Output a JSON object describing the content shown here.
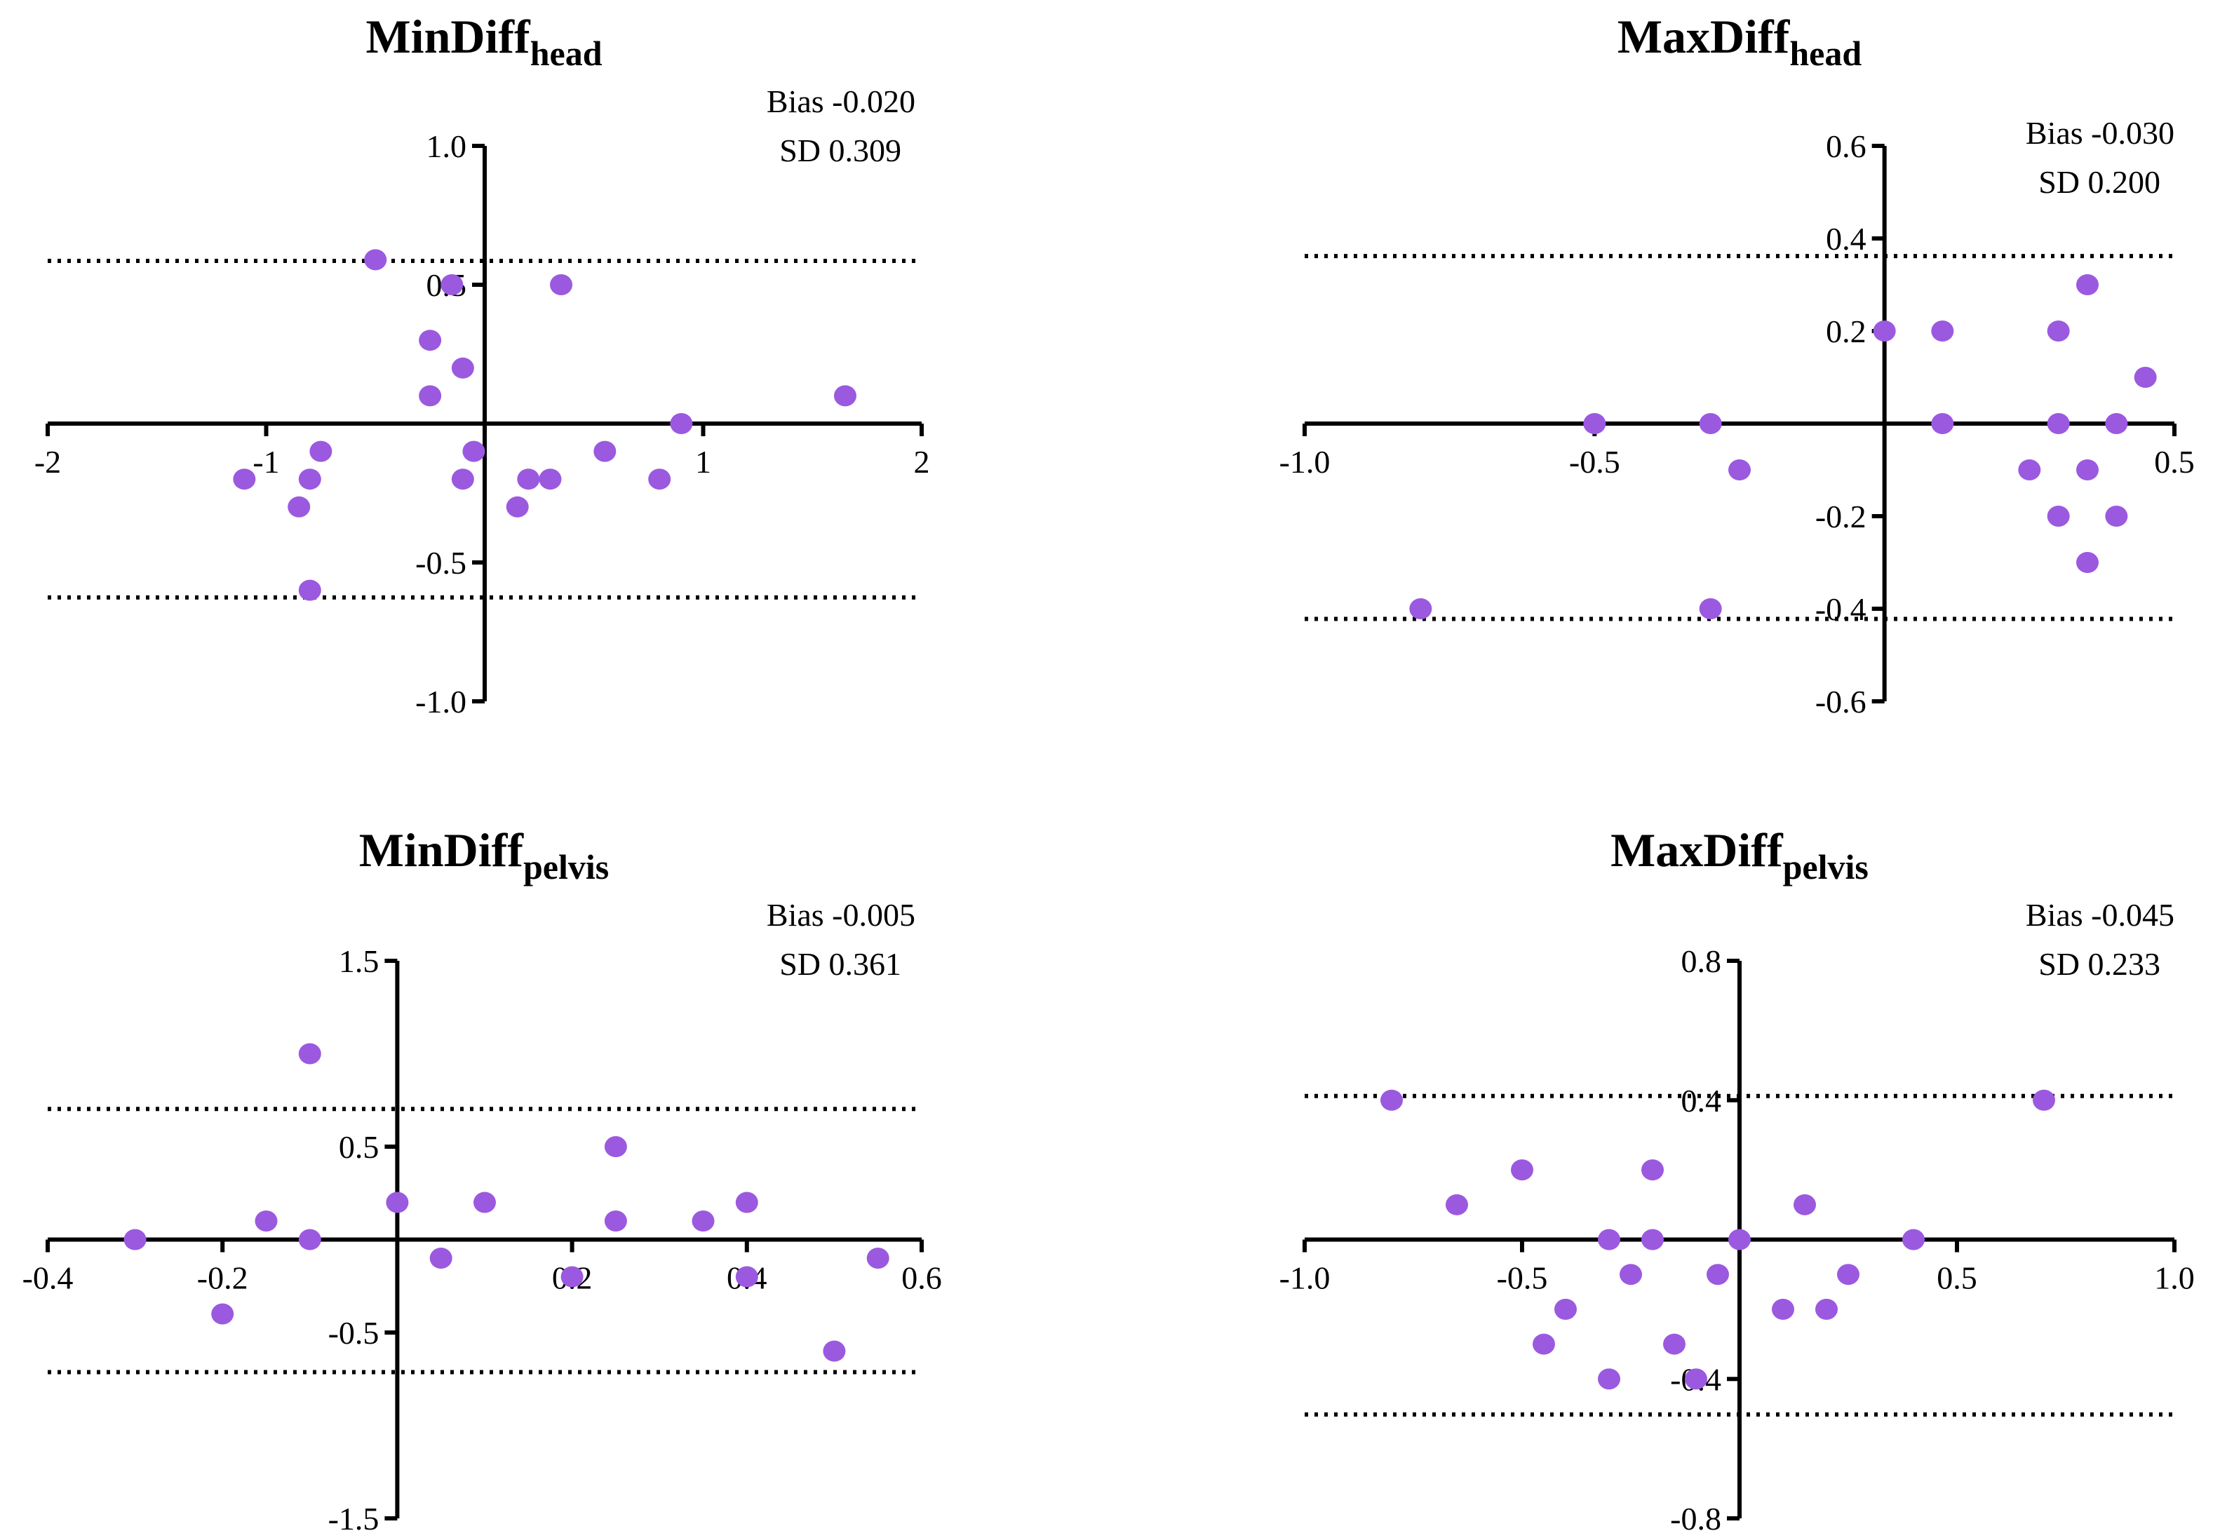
{
  "chart_data": [
    {
      "type": "scatter",
      "title": "MinDiff",
      "title_subscript": "head",
      "bias_label": "Bias -0.020",
      "sd_label": "SD 0.309",
      "point_color": "#9b59e0",
      "point_color_dark": "#7f2fd6",
      "xlim": [
        -2,
        2
      ],
      "ylim": [
        -1.0,
        1.0
      ],
      "x_ticks": [
        "-2",
        "-1",
        "1",
        "2"
      ],
      "x_tick_values": [
        -2,
        -1,
        1,
        2
      ],
      "y_ticks": [
        "1.0",
        "0.5",
        "-0.5",
        "-1.0"
      ],
      "y_tick_values": [
        1.0,
        0.5,
        -0.5,
        -1.0
      ],
      "limits_of_agreement": [
        0.586,
        -0.626
      ],
      "points": [
        {
          "x": -0.5,
          "y": 0.59
        },
        {
          "x": -0.15,
          "y": 0.5
        },
        {
          "x": 0.35,
          "y": 0.5
        },
        {
          "x": -0.25,
          "y": 0.3
        },
        {
          "x": -0.1,
          "y": 0.2
        },
        {
          "x": -0.25,
          "y": 0.1
        },
        {
          "x": 1.65,
          "y": 0.1
        },
        {
          "x": 0.9,
          "y": 0.0
        },
        {
          "x": -0.75,
          "y": -0.1
        },
        {
          "x": -0.05,
          "y": -0.1
        },
        {
          "x": 0.55,
          "y": -0.1
        },
        {
          "x": -1.1,
          "y": -0.2
        },
        {
          "x": -0.8,
          "y": -0.2
        },
        {
          "x": -0.1,
          "y": -0.2
        },
        {
          "x": 0.2,
          "y": -0.2
        },
        {
          "x": 0.3,
          "y": -0.2
        },
        {
          "x": 0.8,
          "y": -0.2
        },
        {
          "x": -0.85,
          "y": -0.3
        },
        {
          "x": 0.15,
          "y": -0.3
        },
        {
          "x": -0.8,
          "y": -0.6
        }
      ]
    },
    {
      "type": "scatter",
      "title": "MaxDiff",
      "title_subscript": "head",
      "bias_label": "Bias -0.030",
      "sd_label": "SD 0.200",
      "point_color": "#9b59e0",
      "point_color_dark": "#7f2fd6",
      "xlim": [
        -1.0,
        0.5
      ],
      "ylim": [
        -0.6,
        0.6
      ],
      "x_ticks": [
        "-1.0",
        "-0.5",
        "0.5"
      ],
      "x_tick_values": [
        -1.0,
        -0.5,
        0.5
      ],
      "y_ticks": [
        "0.6",
        "0.4",
        "0.2",
        "-0.2",
        "-0.4",
        "-0.6"
      ],
      "y_tick_values": [
        0.6,
        0.4,
        0.2,
        -0.2,
        -0.4,
        -0.6
      ],
      "limits_of_agreement": [
        0.362,
        -0.422
      ],
      "points": [
        {
          "x": 0.35,
          "y": 0.3
        },
        {
          "x": 0.0,
          "y": 0.2
        },
        {
          "x": 0.1,
          "y": 0.2
        },
        {
          "x": 0.3,
          "y": 0.2
        },
        {
          "x": 0.45,
          "y": 0.1
        },
        {
          "x": -0.5,
          "y": 0.0
        },
        {
          "x": -0.3,
          "y": 0.0
        },
        {
          "x": 0.1,
          "y": 0.0
        },
        {
          "x": 0.3,
          "y": 0.0
        },
        {
          "x": 0.4,
          "y": 0.0
        },
        {
          "x": -0.25,
          "y": -0.1
        },
        {
          "x": 0.25,
          "y": -0.1
        },
        {
          "x": 0.35,
          "y": -0.1
        },
        {
          "x": 0.3,
          "y": -0.2
        },
        {
          "x": 0.4,
          "y": -0.2
        },
        {
          "x": 0.35,
          "y": -0.3
        },
        {
          "x": -0.8,
          "y": -0.4
        },
        {
          "x": -0.3,
          "y": -0.4
        }
      ]
    },
    {
      "type": "scatter",
      "title": "MinDiff",
      "title_subscript": "pelvis",
      "bias_label": "Bias -0.005",
      "sd_label": "SD 0.361",
      "point_color": "#9b59e0",
      "point_color_dark": "#7f2fd6",
      "xlim": [
        -0.4,
        0.6
      ],
      "ylim": [
        -1.5,
        1.5
      ],
      "x_ticks": [
        "-0.4",
        "-0.2",
        "0.2",
        "0.4",
        "0.6"
      ],
      "x_tick_values": [
        -0.4,
        -0.2,
        0.2,
        0.4,
        0.6
      ],
      "y_ticks": [
        "1.5",
        "0.5",
        "-0.5",
        "-1.5"
      ],
      "y_tick_values": [
        1.5,
        0.5,
        -0.5,
        -1.5
      ],
      "limits_of_agreement": [
        0.703,
        -0.713
      ],
      "points": [
        {
          "x": -0.1,
          "y": 1.0
        },
        {
          "x": 0.25,
          "y": 0.5
        },
        {
          "x": 0.0,
          "y": 0.2
        },
        {
          "x": 0.1,
          "y": 0.2
        },
        {
          "x": 0.4,
          "y": 0.2
        },
        {
          "x": -0.15,
          "y": 0.1
        },
        {
          "x": 0.25,
          "y": 0.1
        },
        {
          "x": 0.35,
          "y": 0.1
        },
        {
          "x": -0.3,
          "y": 0.0
        },
        {
          "x": -0.1,
          "y": 0.0
        },
        {
          "x": 0.05,
          "y": -0.1
        },
        {
          "x": 0.55,
          "y": -0.1
        },
        {
          "x": 0.2,
          "y": -0.2
        },
        {
          "x": 0.4,
          "y": -0.2
        },
        {
          "x": -0.2,
          "y": -0.4
        },
        {
          "x": 0.5,
          "y": -0.6
        }
      ]
    },
    {
      "type": "scatter",
      "title": "MaxDiff",
      "title_subscript": "pelvis",
      "bias_label": "Bias -0.045",
      "sd_label": "SD 0.233",
      "point_color": "#9b59e0",
      "point_color_dark": "#7f2fd6",
      "xlim": [
        -1.0,
        1.0
      ],
      "ylim": [
        -0.8,
        0.8
      ],
      "x_ticks": [
        "-1.0",
        "-0.5",
        "0.5",
        "1.0"
      ],
      "x_tick_values": [
        -1.0,
        -0.5,
        0.5,
        1.0
      ],
      "y_ticks": [
        "0.8",
        "0.4",
        "-0.4",
        "-0.8"
      ],
      "y_tick_values": [
        0.8,
        0.4,
        -0.4,
        -0.8
      ],
      "limits_of_agreement": [
        0.412,
        -0.502
      ],
      "points": [
        {
          "x": -0.8,
          "y": 0.4
        },
        {
          "x": 0.7,
          "y": 0.4
        },
        {
          "x": -0.5,
          "y": 0.2
        },
        {
          "x": -0.2,
          "y": 0.2
        },
        {
          "x": -0.65,
          "y": 0.1
        },
        {
          "x": 0.15,
          "y": 0.1
        },
        {
          "x": -0.3,
          "y": 0.0
        },
        {
          "x": -0.2,
          "y": 0.0
        },
        {
          "x": 0.0,
          "y": 0.0
        },
        {
          "x": 0.4,
          "y": 0.0
        },
        {
          "x": -0.25,
          "y": -0.1
        },
        {
          "x": -0.05,
          "y": -0.1
        },
        {
          "x": 0.25,
          "y": -0.1
        },
        {
          "x": -0.4,
          "y": -0.2
        },
        {
          "x": 0.1,
          "y": -0.2
        },
        {
          "x": 0.2,
          "y": -0.2
        },
        {
          "x": -0.45,
          "y": -0.3
        },
        {
          "x": -0.15,
          "y": -0.3
        },
        {
          "x": -0.3,
          "y": -0.4
        },
        {
          "x": -0.1,
          "y": -0.4
        }
      ]
    }
  ]
}
